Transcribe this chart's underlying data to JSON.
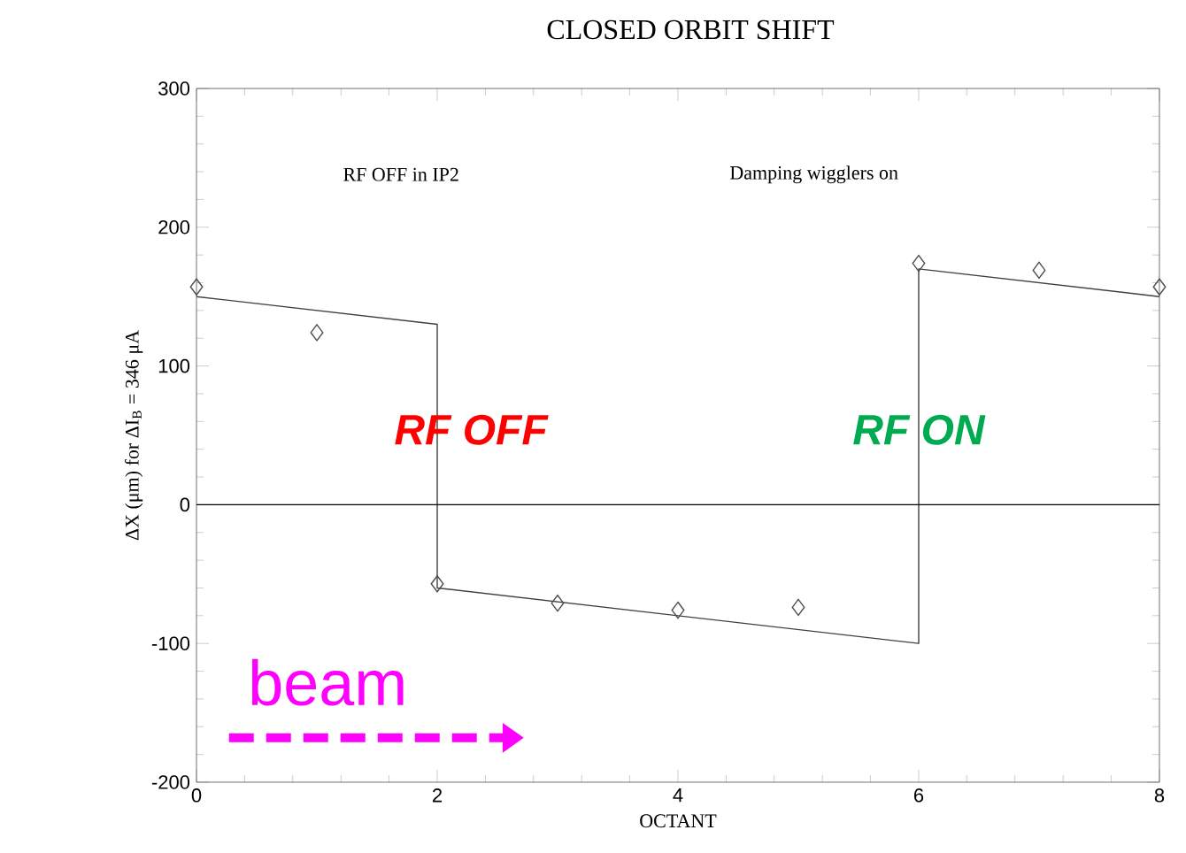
{
  "chart_data": {
    "type": "scatter",
    "title": "CLOSED ORBIT SHIFT",
    "xlabel": "OCTANT",
    "ylabel": "ΔX (μm) for ΔI$_{B}$ = 346 μA",
    "xlim": [
      0,
      8
    ],
    "ylim": [
      -200,
      300
    ],
    "xticks": [
      0,
      2,
      4,
      6,
      8
    ],
    "yticks": [
      -200,
      -100,
      0,
      100,
      200,
      300
    ],
    "grid": false,
    "series": [
      {
        "color": "#4d4d4d",
        "marker": "diamond",
        "x": [
          0,
          1,
          2,
          3,
          4,
          5,
          6,
          7,
          8
        ],
        "values": [
          157,
          124,
          -57,
          -71,
          -76,
          -74,
          174,
          169,
          157
        ]
      },
      {
        "type": "line",
        "color": "#404040",
        "marker": "none",
        "line_style": "solid",
        "x": [
          0,
          2,
          2,
          6,
          6,
          8
        ],
        "values": [
          150,
          130,
          -60,
          -100,
          170,
          150
        ]
      }
    ],
    "ref_lines": [
      {
        "axis": "y",
        "value": 0,
        "color": "#000000",
        "line_style": "solid"
      }
    ],
    "annotations": [
      "RF OFF in IP2",
      "Damping wigglers on",
      "RF OFF",
      "RF ON",
      "beam"
    ]
  }
}
